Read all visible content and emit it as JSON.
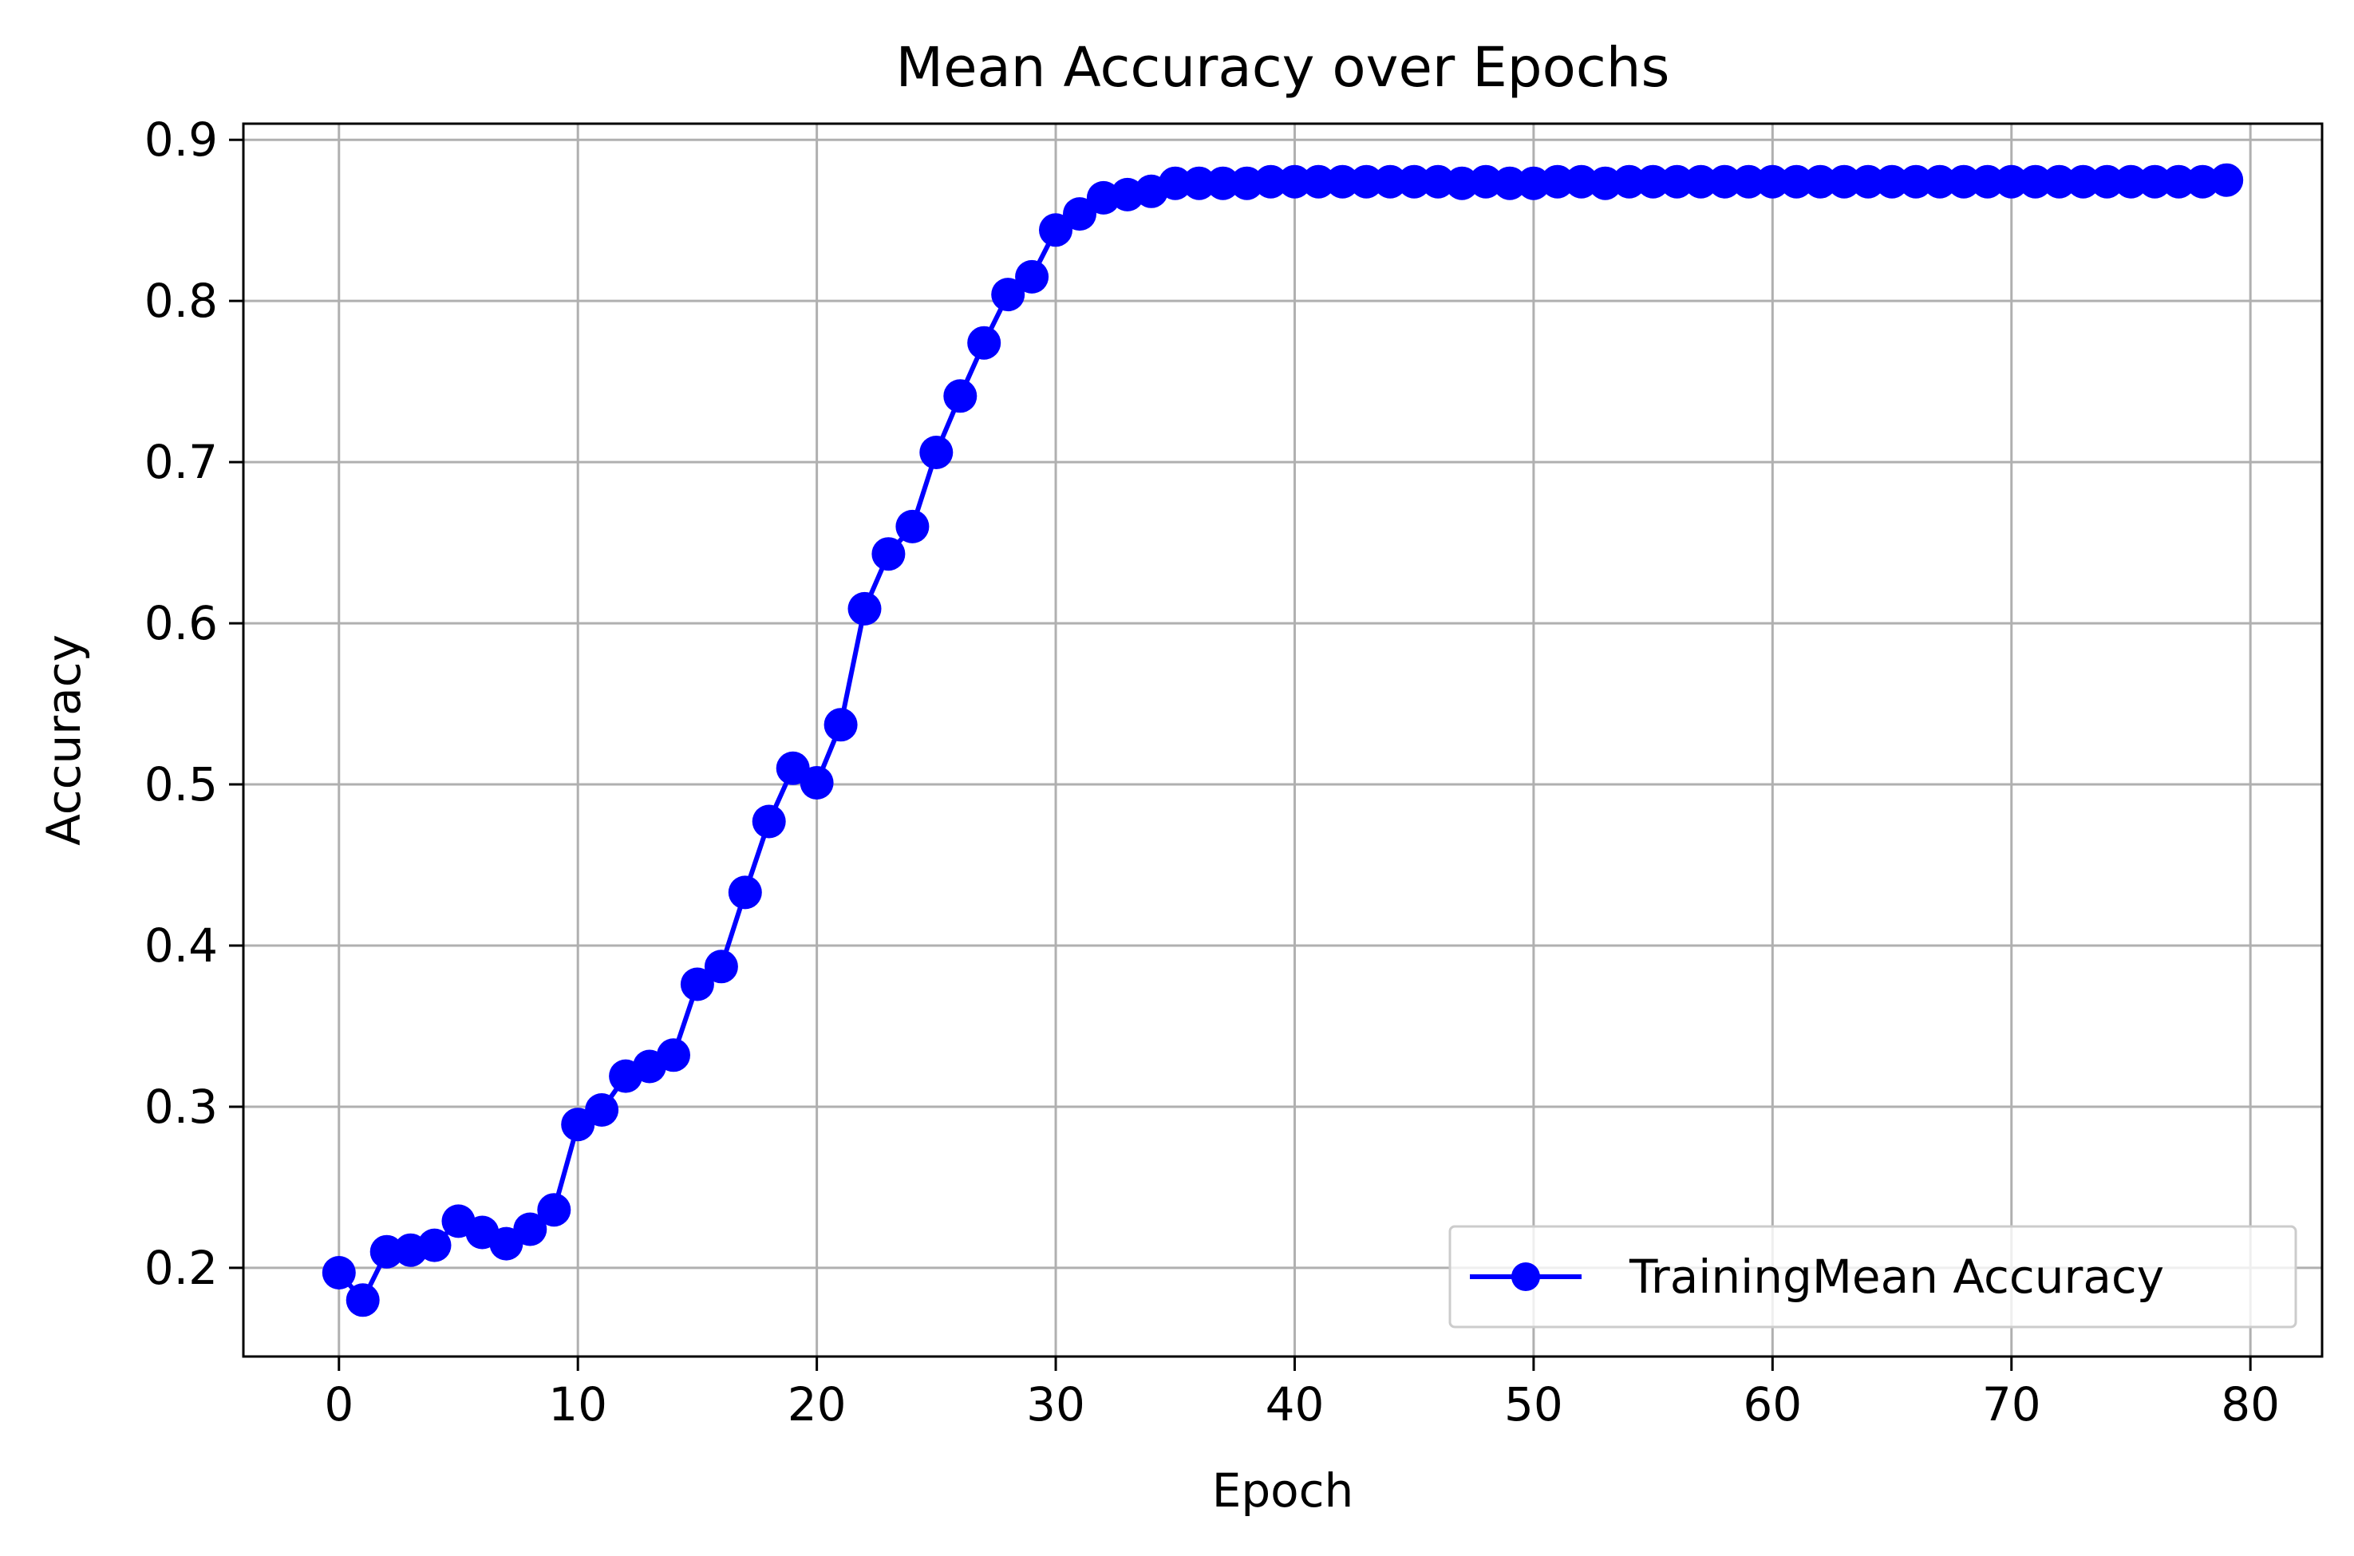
{
  "chart_data": {
    "type": "line",
    "title": "Mean Accuracy over Epochs",
    "xlabel": "Epoch",
    "ylabel": "Accuracy",
    "xlim": [
      -4,
      83
    ],
    "ylim": [
      0.145,
      0.91
    ],
    "xticks": [
      0,
      10,
      20,
      30,
      40,
      50,
      60,
      70,
      80
    ],
    "yticks": [
      0.2,
      0.3,
      0.4,
      0.5,
      0.6,
      0.7,
      0.8,
      0.9
    ],
    "ytick_labels": [
      "0.2",
      "0.3",
      "0.4",
      "0.5",
      "0.6",
      "0.7",
      "0.8",
      "0.9"
    ],
    "grid": true,
    "legend_position": "lower-right",
    "series": [
      {
        "name": "TrainingMean Accuracy",
        "color": "#0000ff",
        "marker": "circle",
        "x": [
          0,
          1,
          2,
          3,
          4,
          5,
          6,
          7,
          8,
          9,
          10,
          11,
          12,
          13,
          14,
          15,
          16,
          17,
          18,
          19,
          20,
          21,
          22,
          23,
          24,
          25,
          26,
          27,
          28,
          29,
          30,
          31,
          32,
          33,
          34,
          35,
          36,
          37,
          38,
          39,
          40,
          41,
          42,
          43,
          44,
          45,
          46,
          47,
          48,
          49,
          50,
          51,
          52,
          53,
          54,
          55,
          56,
          57,
          58,
          59,
          60,
          61,
          62,
          63,
          64,
          65,
          66,
          67,
          68,
          69,
          70,
          71,
          72,
          73,
          74,
          75,
          76,
          77,
          78,
          79
        ],
        "values": [
          0.197,
          0.18,
          0.21,
          0.211,
          0.214,
          0.229,
          0.222,
          0.215,
          0.224,
          0.236,
          0.289,
          0.298,
          0.319,
          0.325,
          0.332,
          0.376,
          0.387,
          0.433,
          0.477,
          0.51,
          0.501,
          0.537,
          0.609,
          0.643,
          0.66,
          0.706,
          0.741,
          0.774,
          0.804,
          0.815,
          0.844,
          0.854,
          0.864,
          0.866,
          0.868,
          0.873,
          0.873,
          0.873,
          0.873,
          0.874,
          0.874,
          0.874,
          0.874,
          0.874,
          0.874,
          0.874,
          0.874,
          0.873,
          0.874,
          0.873,
          0.873,
          0.874,
          0.874,
          0.873,
          0.874,
          0.874,
          0.874,
          0.874,
          0.874,
          0.874,
          0.874,
          0.874,
          0.874,
          0.874,
          0.874,
          0.874,
          0.874,
          0.874,
          0.874,
          0.874,
          0.874,
          0.874,
          0.874,
          0.874,
          0.874,
          0.874,
          0.874,
          0.874,
          0.874,
          0.875
        ]
      }
    ]
  }
}
